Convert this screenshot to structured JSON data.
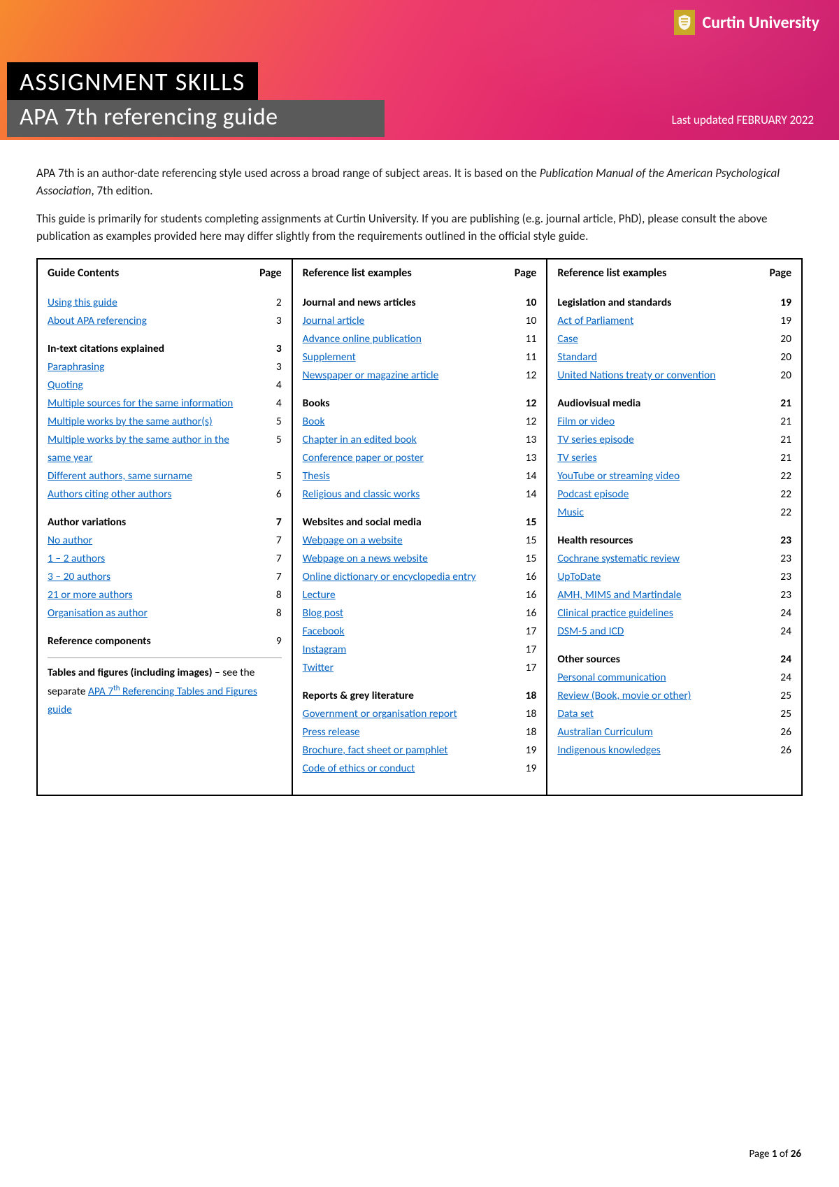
{
  "header": {
    "uni_name": "Curtin University",
    "title_main": "ASSIGNMENT SKILLS",
    "title_sub": "APA 7th referencing guide",
    "updated": "Last updated FEBRUARY 2022"
  },
  "intro": {
    "p1a": "APA 7th is an author-date referencing style used across a broad range of subject areas. It is based on the ",
    "p1b": "Publication Manual of the American Psychological Association",
    "p1c": ", 7th edition.",
    "p2": "This guide is primarily for students completing assignments at Curtin University. If you are publishing (e.g. journal article, PhD), please consult the above publication as examples provided here may differ slightly from the requirements outlined in the official style guide."
  },
  "columns": {
    "col1": {
      "header_label": "Guide Contents",
      "header_page": "Page",
      "items": [
        {
          "type": "link",
          "label": "Using this guide",
          "page": "2"
        },
        {
          "type": "link",
          "label": "About APA referencing",
          "page": "3"
        },
        {
          "type": "spacer"
        },
        {
          "type": "heading",
          "label": "In-text citations explained",
          "page": "3",
          "bold_page": true
        },
        {
          "type": "link",
          "label": "Paraphrasing",
          "page": "3"
        },
        {
          "type": "link",
          "label": "Quoting",
          "page": "4"
        },
        {
          "type": "link",
          "label": "Multiple sources for the same information",
          "page": "4"
        },
        {
          "type": "link",
          "label": "Multiple works by the same author(s)",
          "page": "5"
        },
        {
          "type": "link",
          "label": "Multiple works by the same author in the same year",
          "page": "5"
        },
        {
          "type": "link",
          "label": "Different authors, same surname",
          "page": "5"
        },
        {
          "type": "link",
          "label": "Authors citing other authors",
          "page": "6"
        },
        {
          "type": "spacer"
        },
        {
          "type": "heading",
          "label": "Author variations",
          "page": "7",
          "bold_page": true
        },
        {
          "type": "link",
          "label": "No author",
          "page": "7"
        },
        {
          "type": "link",
          "label": "1 – 2 authors",
          "page": "7"
        },
        {
          "type": "link",
          "label": "3 – 20 authors",
          "page": "7"
        },
        {
          "type": "link",
          "label": "21 or more authors",
          "page": "8"
        },
        {
          "type": "link",
          "label": "Organisation as author",
          "page": "8"
        },
        {
          "type": "spacer"
        },
        {
          "type": "heading",
          "label": "Reference components",
          "page": "9",
          "bold_page": false
        }
      ],
      "note": {
        "prefix_bold": "Tables and figures (including images)",
        "mid": " – see the separate ",
        "link": "APA 7ᵗʰ Referencing Tables and Figures guide"
      }
    },
    "col2": {
      "header_label": "Reference list examples",
      "header_page": "Page",
      "items": [
        {
          "type": "heading",
          "label": "Journal and news articles",
          "page": "10",
          "bold_page": true
        },
        {
          "type": "link",
          "label": "Journal article",
          "page": "10"
        },
        {
          "type": "link",
          "label": "Advance online publication",
          "page": "11"
        },
        {
          "type": "link",
          "label": "Supplement",
          "page": "11"
        },
        {
          "type": "link",
          "label": "Newspaper or magazine article",
          "page": "12"
        },
        {
          "type": "spacer"
        },
        {
          "type": "heading",
          "label": "Books",
          "page": "12",
          "bold_page": true
        },
        {
          "type": "link",
          "label": "Book",
          "page": "12"
        },
        {
          "type": "link",
          "label": "Chapter in an edited book",
          "page": "13"
        },
        {
          "type": "link",
          "label": "Conference paper or poster",
          "page": "13"
        },
        {
          "type": "link",
          "label": "Thesis",
          "page": "14"
        },
        {
          "type": "link",
          "label": "Religious and classic works",
          "page": "14"
        },
        {
          "type": "spacer"
        },
        {
          "type": "heading",
          "label": "Websites and social media",
          "page": "15",
          "bold_page": true
        },
        {
          "type": "link",
          "label": "Webpage on a website",
          "page": "15"
        },
        {
          "type": "link",
          "label": "Webpage on a news website",
          "page": "15"
        },
        {
          "type": "link",
          "label": "Online dictionary or encyclopedia entry",
          "page": "16"
        },
        {
          "type": "link",
          "label": "Lecture",
          "page": "16"
        },
        {
          "type": "link",
          "label": "Blog post",
          "page": "16"
        },
        {
          "type": "link",
          "label": "Facebook",
          "page": "17"
        },
        {
          "type": "link",
          "label": "Instagram",
          "page": "17"
        },
        {
          "type": "link",
          "label": "Twitter",
          "page": "17"
        },
        {
          "type": "spacer"
        },
        {
          "type": "heading",
          "label": "Reports & grey literature",
          "page": "18",
          "bold_page": true
        },
        {
          "type": "link",
          "label": "Government or organisation report",
          "page": "18"
        },
        {
          "type": "link",
          "label": "Press release",
          "page": "18"
        },
        {
          "type": "link",
          "label": "Brochure, fact sheet or pamphlet",
          "page": "19"
        },
        {
          "type": "link",
          "label": "Code of ethics or conduct",
          "page": "19"
        }
      ]
    },
    "col3": {
      "header_label": "Reference list examples",
      "header_page": "Page",
      "items": [
        {
          "type": "heading",
          "label": "Legislation and standards",
          "page": "19",
          "bold_page": true
        },
        {
          "type": "link",
          "label": "Act of Parliament",
          "page": "19"
        },
        {
          "type": "link",
          "label": "Case",
          "page": "20"
        },
        {
          "type": "link",
          "label": "Standard",
          "page": "20"
        },
        {
          "type": "link",
          "label": "United Nations treaty or convention",
          "page": "20"
        },
        {
          "type": "spacer"
        },
        {
          "type": "heading",
          "label": "Audiovisual media",
          "page": "21",
          "bold_page": true
        },
        {
          "type": "link",
          "label": "Film or video",
          "page": "21"
        },
        {
          "type": "link",
          "label": "TV series episode",
          "page": "21"
        },
        {
          "type": "link",
          "label": "TV series",
          "page": "21"
        },
        {
          "type": "link",
          "label": "YouTube or streaming video",
          "page": "22"
        },
        {
          "type": "link",
          "label": "Podcast episode",
          "page": "22"
        },
        {
          "type": "link",
          "label": "Music",
          "page": "22"
        },
        {
          "type": "spacer"
        },
        {
          "type": "heading",
          "label": "Health resources",
          "page": "23",
          "bold_page": true
        },
        {
          "type": "link",
          "label": "Cochrane systematic review",
          "page": "23"
        },
        {
          "type": "link",
          "label": "UpToDate",
          "page": "23"
        },
        {
          "type": "link",
          "label": "AMH, MIMS and Martindale",
          "page": "23"
        },
        {
          "type": "link",
          "label": "Clinical practice guidelines",
          "page": "24"
        },
        {
          "type": "link",
          "label": "DSM-5 and ICD",
          "page": "24"
        },
        {
          "type": "spacer"
        },
        {
          "type": "heading",
          "label": "Other sources",
          "page": "24",
          "bold_page": true
        },
        {
          "type": "link",
          "label": "Personal communication",
          "page": "24"
        },
        {
          "type": "link",
          "label": "Review (Book, movie or other)",
          "page": "25"
        },
        {
          "type": "link",
          "label": "Data set",
          "page": "25"
        },
        {
          "type": "link",
          "label": "Australian Curriculum",
          "page": "26"
        },
        {
          "type": "link",
          "label": "Indigenous knowledges",
          "page": "26"
        }
      ]
    }
  },
  "footer": {
    "prefix": "Page ",
    "current": "1",
    "mid": " of ",
    "total": "26"
  }
}
